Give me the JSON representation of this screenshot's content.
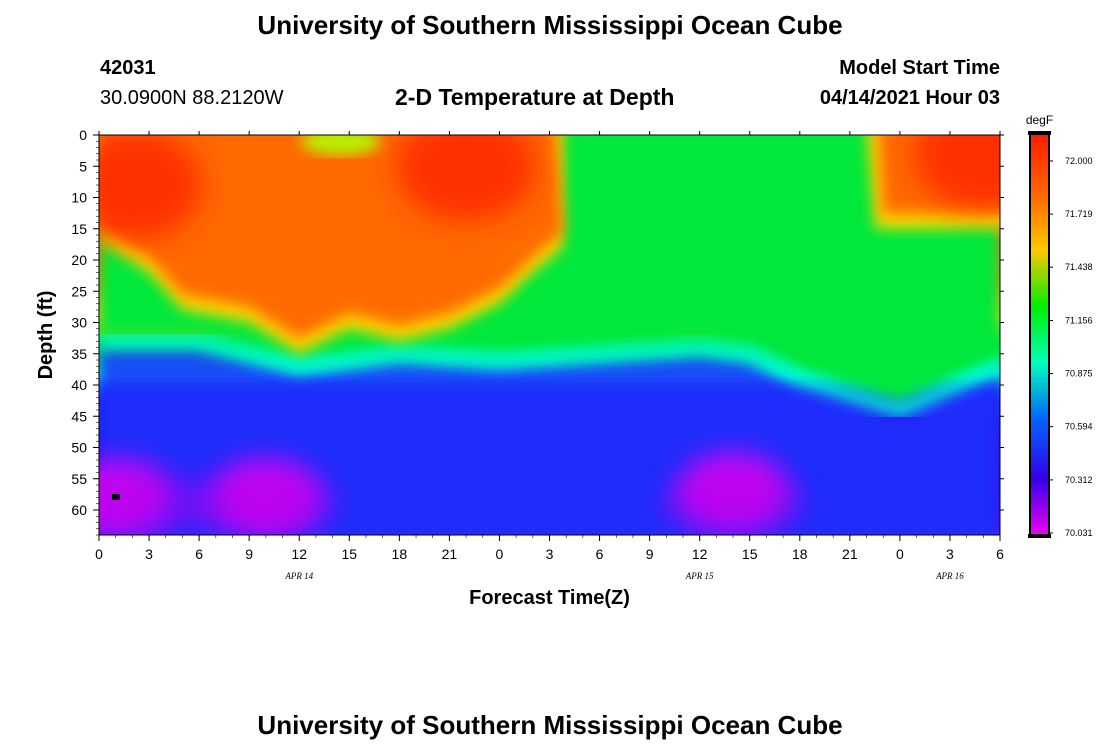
{
  "header": {
    "title": "University of Southern Mississippi Ocean Cube",
    "station_id": "42031",
    "coords": "30.0900N  88.2120W",
    "subtitle": "2-D Temperature at Depth",
    "model_label": "Model Start Time",
    "model_time": "04/14/2021 Hour 03"
  },
  "footer": {
    "title": "University of Southern Mississippi Ocean Cube"
  },
  "colors": {
    "warm": "#ff2a00",
    "cool": "#ee00ee",
    "axis": "#000000"
  },
  "chart_data": {
    "type": "heatmap",
    "title": "2-D Temperature at Depth",
    "xlabel": "Forecast Time(Z)",
    "ylabel": "Depth (ft)",
    "x_ticks": [
      "0",
      "3",
      "6",
      "9",
      "12",
      "15",
      "18",
      "21",
      "0",
      "3",
      "6",
      "9",
      "12",
      "15",
      "18",
      "21",
      "0",
      "3",
      "6"
    ],
    "x_range": [
      0,
      54
    ],
    "x_day_labels": [
      {
        "label": "APR 14",
        "hour": 12
      },
      {
        "label": "APR 15",
        "hour": 36
      },
      {
        "label": "APR 16",
        "hour": 51
      }
    ],
    "y_ticks": [
      "0",
      "5",
      "10",
      "15",
      "20",
      "25",
      "30",
      "35",
      "40",
      "45",
      "50",
      "55",
      "60"
    ],
    "y_range": [
      0,
      64
    ],
    "colorbar": {
      "unit": "degF",
      "levels": [
        "72.000",
        "71.719",
        "71.438",
        "71.156",
        "70.875",
        "70.594",
        "70.312",
        "70.031"
      ],
      "min": 70.031,
      "max": 72.0
    },
    "surface_boundary_ft": [
      {
        "hour": 0,
        "depth": 17
      },
      {
        "hour": 3,
        "depth": 22
      },
      {
        "hour": 5,
        "depth": 28
      },
      {
        "hour": 9,
        "depth": 30
      },
      {
        "hour": 12,
        "depth": 35
      },
      {
        "hour": 15,
        "depth": 31
      },
      {
        "hour": 18,
        "depth": 33
      },
      {
        "hour": 21,
        "depth": 31
      },
      {
        "hour": 24,
        "depth": 27
      },
      {
        "hour": 26,
        "depth": 22
      },
      {
        "hour": 27.8,
        "depth": 18
      },
      {
        "hour": 28,
        "depth": 0
      },
      {
        "hour": 46,
        "depth": 0
      },
      {
        "hour": 46.5,
        "depth": 14
      },
      {
        "hour": 54,
        "depth": 14
      }
    ],
    "thermocline_ft": [
      {
        "hour": 0,
        "depth": 34
      },
      {
        "hour": 6,
        "depth": 34
      },
      {
        "hour": 12,
        "depth": 38
      },
      {
        "hour": 18,
        "depth": 36
      },
      {
        "hour": 24,
        "depth": 37
      },
      {
        "hour": 30,
        "depth": 36
      },
      {
        "hour": 36,
        "depth": 35
      },
      {
        "hour": 39,
        "depth": 36
      },
      {
        "hour": 42,
        "depth": 40
      },
      {
        "hour": 48,
        "depth": 45
      },
      {
        "hour": 54,
        "depth": 38
      }
    ],
    "warm_cores": [
      {
        "hour": 2,
        "depth": 8,
        "value": 72.0
      },
      {
        "hour": 22,
        "depth": 5,
        "value": 72.0
      },
      {
        "hour": 53,
        "depth": 3,
        "value": 71.9
      }
    ],
    "cold_cores": [
      {
        "hour": 1,
        "depth": 58,
        "value": 70.031
      },
      {
        "hour": 10,
        "depth": 58,
        "value": 70.031
      },
      {
        "hour": 38,
        "depth": 57,
        "value": 70.031
      }
    ]
  }
}
